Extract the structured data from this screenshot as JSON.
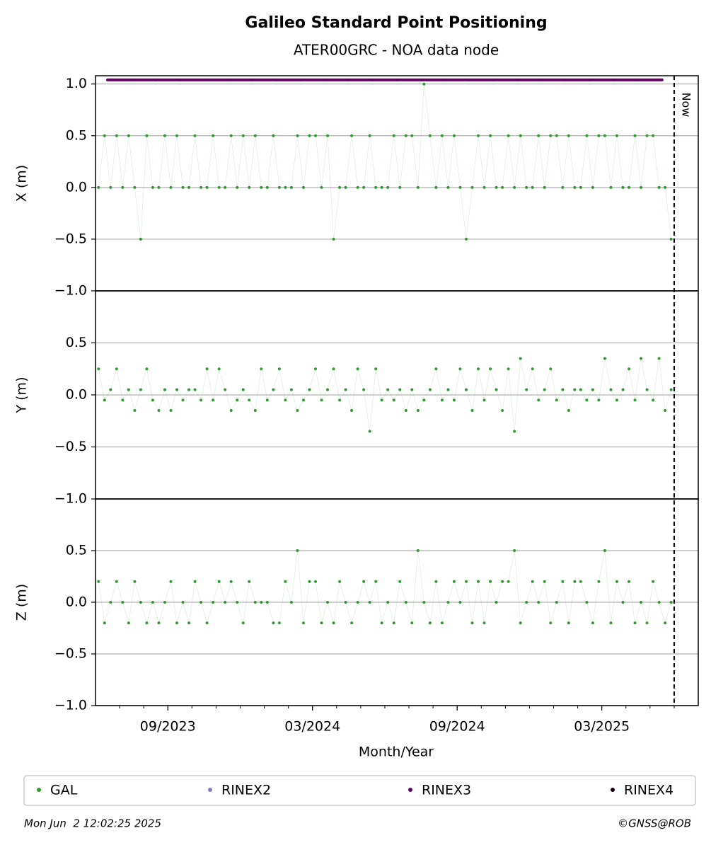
{
  "chart_data": {
    "type": "scatter",
    "title": "Galileo Standard Point Positioning",
    "subtitle": "ATER00GRC - NOA data node",
    "xlabel": "Month/Year",
    "xlim": [
      "2023-06",
      "2025-07"
    ],
    "xticks": [
      {
        "value": "2023-09",
        "label": "09/2023"
      },
      {
        "value": "2024-03",
        "label": "03/2024"
      },
      {
        "value": "2024-09",
        "label": "09/2024"
      },
      {
        "value": "2025-03",
        "label": "03/2025"
      }
    ],
    "now": {
      "x": "2025-06",
      "label": "Now"
    },
    "grid": true,
    "footer_left": "Mon Jun  2 12:02:25 2025",
    "footer_right": "©GNSS@ROB",
    "panels": [
      {
        "ylabel": "X (m)",
        "ylim": [
          -1,
          1.08
        ],
        "yticks": [
          {
            "value": -1,
            "label": "−1.0"
          },
          {
            "value": -0.5,
            "label": "−0.5"
          },
          {
            "value": 0,
            "label": "0.0"
          },
          0.5,
          {
            "value": 1,
            "label": "1.0"
          }
        ],
        "series": [
          {
            "name": "GAL",
            "color": "#339933",
            "x": [
              "2023-06",
              "2023-06",
              "2023-06",
              "2023-06",
              "2023-07",
              "2023-07",
              "2023-07",
              "2023-07",
              "2023-08",
              "2023-08",
              "2023-08",
              "2023-08",
              "2023-09",
              "2023-09",
              "2023-09",
              "2023-09",
              "2023-10",
              "2023-10",
              "2023-10",
              "2023-10",
              "2023-11",
              "2023-11",
              "2023-11",
              "2023-11",
              "2023-12",
              "2023-12",
              "2023-12",
              "2023-12",
              "2024-01",
              "2024-01",
              "2024-01",
              "2024-01",
              "2024-02",
              "2024-02",
              "2024-02",
              "2024-02",
              "2024-03",
              "2024-03",
              "2024-03",
              "2024-03",
              "2024-04",
              "2024-04",
              "2024-04",
              "2024-04",
              "2024-05",
              "2024-05",
              "2024-05",
              "2024-05",
              "2024-06",
              "2024-06",
              "2024-06",
              "2024-06",
              "2024-07",
              "2024-07",
              "2024-07",
              "2024-07",
              "2024-08",
              "2024-08",
              "2024-08",
              "2024-08",
              "2024-09",
              "2024-09",
              "2024-09",
              "2024-09",
              "2024-10",
              "2024-10",
              "2024-10",
              "2024-10",
              "2024-11",
              "2024-11",
              "2024-11",
              "2024-11",
              "2024-12",
              "2024-12",
              "2024-12",
              "2024-12",
              "2025-01",
              "2025-01",
              "2025-01",
              "2025-01",
              "2025-02",
              "2025-02",
              "2025-02",
              "2025-02",
              "2025-03",
              "2025-03",
              "2025-03",
              "2025-03",
              "2025-04",
              "2025-04",
              "2025-04",
              "2025-04",
              "2025-05",
              "2025-05",
              "2025-05",
              "2025-05"
            ],
            "values": [
              0,
              0.5,
              0,
              0.5,
              0,
              0.5,
              0,
              -0.5,
              0.5,
              0,
              0,
              0.5,
              0,
              0.5,
              0,
              0,
              0.5,
              0,
              0,
              0.5,
              0,
              0,
              0.5,
              0,
              0.5,
              0,
              0.5,
              0,
              0,
              0.5,
              0,
              0,
              0,
              0.5,
              0,
              0.5,
              0.5,
              0,
              0.5,
              -0.5,
              0,
              0,
              0.5,
              0,
              0,
              0.5,
              0,
              0,
              0,
              0.5,
              0,
              0.5,
              0.5,
              0,
              1,
              0.5,
              0,
              0.5,
              0,
              0.5,
              0,
              -0.5,
              0,
              0.5,
              0,
              0.5,
              0,
              0,
              0.5,
              0,
              0.5,
              0,
              0,
              0.5,
              0,
              0.5,
              0.5,
              0,
              0.5,
              0,
              0,
              0.5,
              0,
              0.5,
              0.5,
              0,
              0.5,
              0,
              0,
              0.5,
              0,
              0.5,
              0.5,
              0,
              0,
              -0.5
            ]
          },
          {
            "name": "RINEX2",
            "color": "#7f7fbf",
            "x": [],
            "values": []
          },
          {
            "name": "RINEX3",
            "color": "#660066",
            "x": [
              "2023-06",
              "2023-07",
              "2023-08",
              "2023-09",
              "2023-10",
              "2023-11",
              "2023-12",
              "2024-01",
              "2024-02",
              "2024-03",
              "2024-04",
              "2024-05",
              "2024-06",
              "2024-07",
              "2024-08",
              "2024-09",
              "2024-10",
              "2024-11",
              "2024-12",
              "2025-01",
              "2025-02",
              "2025-03",
              "2025-04",
              "2025-05"
            ],
            "values": [
              1.04,
              1.04,
              1.04,
              1.04,
              1.04,
              1.04,
              1.04,
              1.04,
              1.04,
              1.04,
              1.04,
              1.04,
              1.04,
              1.04,
              1.04,
              1.04,
              1.04,
              1.04,
              1.04,
              1.04,
              1.04,
              1.04,
              1.04,
              1.04
            ]
          },
          {
            "name": "RINEX4",
            "color": "#1a0011",
            "x": [],
            "values": []
          }
        ]
      },
      {
        "ylabel": "Y (m)",
        "ylim": [
          -1,
          1
        ],
        "yticks": [
          {
            "value": -1,
            "label": "−1.0"
          },
          {
            "value": -0.5,
            "label": "−0.5"
          },
          {
            "value": 0,
            "label": "0.0"
          },
          0.5
        ],
        "series": [
          {
            "name": "GAL",
            "color": "#339933",
            "x": [
              "2023-06",
              "2023-06",
              "2023-06",
              "2023-06",
              "2023-07",
              "2023-07",
              "2023-07",
              "2023-07",
              "2023-08",
              "2023-08",
              "2023-08",
              "2023-08",
              "2023-09",
              "2023-09",
              "2023-09",
              "2023-09",
              "2023-10",
              "2023-10",
              "2023-10",
              "2023-10",
              "2023-11",
              "2023-11",
              "2023-11",
              "2023-11",
              "2023-12",
              "2023-12",
              "2023-12",
              "2023-12",
              "2024-01",
              "2024-01",
              "2024-01",
              "2024-01",
              "2024-02",
              "2024-02",
              "2024-02",
              "2024-02",
              "2024-03",
              "2024-03",
              "2024-03",
              "2024-03",
              "2024-04",
              "2024-04",
              "2024-04",
              "2024-04",
              "2024-05",
              "2024-05",
              "2024-05",
              "2024-05",
              "2024-06",
              "2024-06",
              "2024-06",
              "2024-06",
              "2024-07",
              "2024-07",
              "2024-07",
              "2024-07",
              "2024-08",
              "2024-08",
              "2024-08",
              "2024-08",
              "2024-09",
              "2024-09",
              "2024-09",
              "2024-09",
              "2024-10",
              "2024-10",
              "2024-10",
              "2024-10",
              "2024-11",
              "2024-11",
              "2024-11",
              "2024-11",
              "2024-12",
              "2024-12",
              "2024-12",
              "2024-12",
              "2025-01",
              "2025-01",
              "2025-01",
              "2025-01",
              "2025-02",
              "2025-02",
              "2025-02",
              "2025-02",
              "2025-03",
              "2025-03",
              "2025-03",
              "2025-03",
              "2025-04",
              "2025-04",
              "2025-04",
              "2025-04",
              "2025-05",
              "2025-05",
              "2025-05",
              "2025-05"
            ],
            "values": [
              0.25,
              -0.05,
              0.05,
              0.25,
              -0.05,
              0.05,
              -0.15,
              0.05,
              0.25,
              -0.05,
              -0.15,
              0.05,
              -0.15,
              0.05,
              -0.05,
              0.05,
              0.05,
              -0.05,
              0.25,
              -0.05,
              0.25,
              0.05,
              -0.15,
              -0.05,
              0.05,
              -0.05,
              -0.15,
              0.25,
              -0.05,
              0.05,
              0.25,
              -0.05,
              0.05,
              -0.15,
              -0.05,
              0.05,
              0.25,
              -0.05,
              0.05,
              0.25,
              -0.05,
              0.05,
              -0.15,
              0.25,
              0.05,
              -0.35,
              0.25,
              -0.05,
              0.05,
              -0.05,
              0.05,
              -0.15,
              0.05,
              -0.15,
              -0.05,
              0.05,
              0.25,
              -0.05,
              0.05,
              -0.05,
              0.25,
              0.05,
              -0.15,
              0.25,
              -0.05,
              0.25,
              0.05,
              -0.15,
              0.25,
              -0.35,
              0.35,
              0.05,
              0.25,
              -0.05,
              0.05,
              0.25,
              -0.05,
              0.05,
              -0.15,
              0.05,
              0.05,
              -0.05,
              0.05,
              -0.05,
              0.35,
              0.05,
              -0.05,
              0.05,
              0.25,
              -0.05,
              0.35,
              0.05,
              -0.05,
              0.35,
              -0.15,
              0.05
            ]
          }
        ]
      },
      {
        "ylabel": "Z (m)",
        "ylim": [
          -1,
          1
        ],
        "yticks": [
          {
            "value": -1,
            "label": "−1.0"
          },
          {
            "value": -0.5,
            "label": "−0.5"
          },
          {
            "value": 0,
            "label": "0.0"
          },
          0.5
        ],
        "series": [
          {
            "name": "GAL",
            "color": "#339933",
            "x": [
              "2023-06",
              "2023-06",
              "2023-06",
              "2023-06",
              "2023-07",
              "2023-07",
              "2023-07",
              "2023-07",
              "2023-08",
              "2023-08",
              "2023-08",
              "2023-08",
              "2023-09",
              "2023-09",
              "2023-09",
              "2023-09",
              "2023-10",
              "2023-10",
              "2023-10",
              "2023-10",
              "2023-11",
              "2023-11",
              "2023-11",
              "2023-11",
              "2023-12",
              "2023-12",
              "2023-12",
              "2023-12",
              "2024-01",
              "2024-01",
              "2024-01",
              "2024-01",
              "2024-02",
              "2024-02",
              "2024-02",
              "2024-02",
              "2024-03",
              "2024-03",
              "2024-03",
              "2024-03",
              "2024-04",
              "2024-04",
              "2024-04",
              "2024-04",
              "2024-05",
              "2024-05",
              "2024-05",
              "2024-05",
              "2024-06",
              "2024-06",
              "2024-06",
              "2024-06",
              "2024-07",
              "2024-07",
              "2024-07",
              "2024-07",
              "2024-08",
              "2024-08",
              "2024-08",
              "2024-08",
              "2024-09",
              "2024-09",
              "2024-09",
              "2024-09",
              "2024-10",
              "2024-10",
              "2024-10",
              "2024-10",
              "2024-11",
              "2024-11",
              "2024-11",
              "2024-11",
              "2024-12",
              "2024-12",
              "2024-12",
              "2024-12",
              "2025-01",
              "2025-01",
              "2025-01",
              "2025-01",
              "2025-02",
              "2025-02",
              "2025-02",
              "2025-02",
              "2025-03",
              "2025-03",
              "2025-03",
              "2025-03",
              "2025-04",
              "2025-04",
              "2025-04",
              "2025-04",
              "2025-05",
              "2025-05",
              "2025-05",
              "2025-05"
            ],
            "values": [
              0.2,
              -0.2,
              0,
              0.2,
              0,
              -0.2,
              0.2,
              0,
              -0.2,
              0,
              -0.2,
              0,
              0.2,
              -0.2,
              0,
              -0.2,
              0.2,
              0,
              -0.2,
              0,
              0.2,
              0,
              0.2,
              0,
              -0.2,
              0.2,
              0,
              0,
              0,
              -0.2,
              -0.2,
              0.2,
              0,
              0.5,
              -0.2,
              0.2,
              0.2,
              -0.2,
              0,
              -0.2,
              0.2,
              0,
              -0.2,
              0,
              0.2,
              0,
              0.2,
              -0.2,
              0,
              -0.2,
              0.2,
              0,
              -0.2,
              0.5,
              0,
              -0.2,
              0.2,
              -0.2,
              0,
              0.2,
              0,
              0.2,
              -0.2,
              0.2,
              -0.2,
              0.2,
              0,
              0.2,
              0.2,
              0.5,
              -0.2,
              0,
              0.2,
              0,
              0.2,
              -0.2,
              0,
              0.2,
              -0.2,
              0.2,
              0.2,
              0,
              -0.2,
              0.2,
              0.5,
              -0.2,
              0.2,
              0,
              0.2,
              -0.2,
              0,
              -0.2,
              0.2,
              0,
              -0.2,
              0
            ]
          }
        ]
      }
    ]
  }
}
